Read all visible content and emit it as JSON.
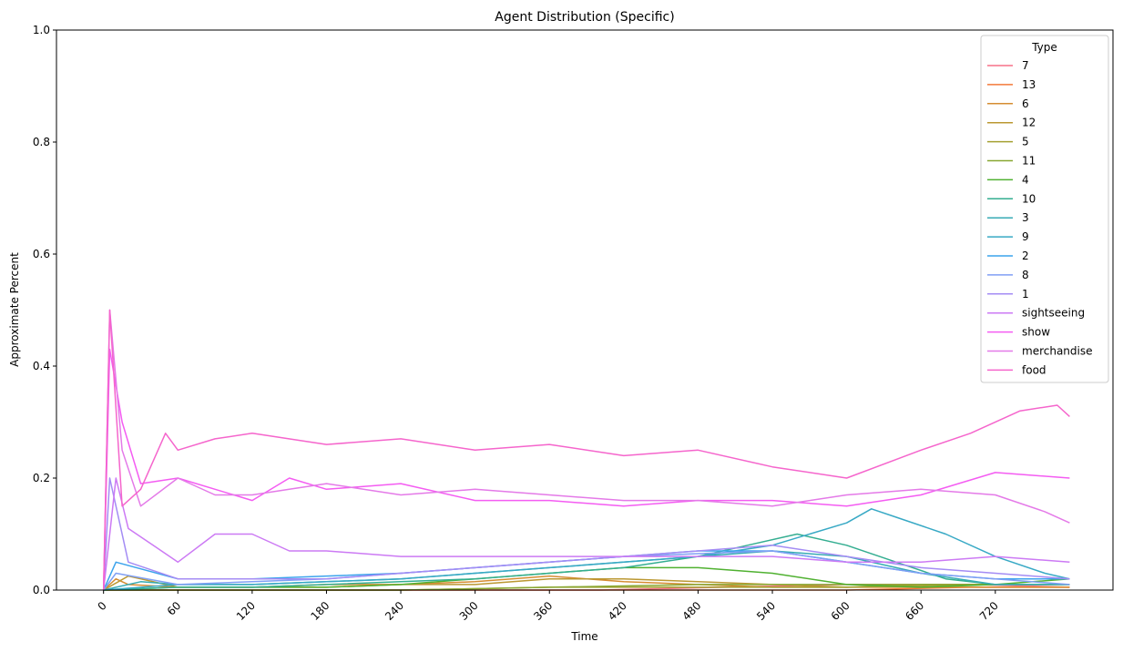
{
  "chart_data": {
    "type": "line",
    "title": "Agent Distribution (Specific)",
    "xlabel": "Time",
    "ylabel": "Approximate Percent",
    "xlim": [
      -38,
      815
    ],
    "ylim": [
      0,
      1
    ],
    "x_ticks": [
      0,
      60,
      120,
      180,
      240,
      300,
      360,
      420,
      480,
      540,
      600,
      660,
      720
    ],
    "y_ticks": [
      0.0,
      0.2,
      0.4,
      0.6,
      0.8,
      1.0
    ],
    "x_tick_labels": [
      "0",
      "60",
      "120",
      "180",
      "240",
      "300",
      "360",
      "420",
      "480",
      "540",
      "600",
      "660",
      "720"
    ],
    "y_tick_labels": [
      "0.0",
      "0.2",
      "0.4",
      "0.6",
      "0.8",
      "1.0"
    ],
    "x_tick_rotation": 45,
    "grid": false,
    "legend": {
      "title": "Type",
      "position": "top-right"
    },
    "series": [
      {
        "name": "7",
        "color": "#f77189",
        "x": [
          0,
          100,
          200,
          300,
          400,
          500,
          600,
          700,
          780
        ],
        "y": [
          0,
          0,
          0,
          0,
          0,
          0.005,
          0.01,
          0.01,
          0.005
        ]
      },
      {
        "name": "13",
        "color": "#f3793a",
        "x": [
          0,
          100,
          200,
          300,
          400,
          500,
          600,
          700,
          780
        ],
        "y": [
          0,
          0,
          0,
          0,
          0,
          0,
          0,
          0.005,
          0.005
        ]
      },
      {
        "name": "6",
        "color": "#d58c32",
        "x": [
          0,
          10,
          20,
          60,
          120,
          180,
          240,
          300,
          360,
          420,
          480,
          540,
          600,
          660,
          720,
          780
        ],
        "y": [
          0,
          0.02,
          0.01,
          0.005,
          0.005,
          0.01,
          0.01,
          0.015,
          0.025,
          0.015,
          0.01,
          0.005,
          0.005,
          0.005,
          0.005,
          0.005
        ]
      },
      {
        "name": "12",
        "color": "#bb9832",
        "x": [
          0,
          20,
          60,
          120,
          180,
          240,
          300,
          360,
          420,
          480,
          540,
          600,
          660,
          720,
          780
        ],
        "y": [
          0,
          0.025,
          0.005,
          0.005,
          0.005,
          0.01,
          0.01,
          0.02,
          0.02,
          0.015,
          0.01,
          0.005,
          0.01,
          0.01,
          0.01
        ]
      },
      {
        "name": "5",
        "color": "#a4a031",
        "x": [
          0,
          120,
          240,
          360,
          480,
          600,
          720,
          780
        ],
        "y": [
          0,
          0,
          0,
          0.005,
          0.005,
          0.005,
          0.01,
          0.01
        ]
      },
      {
        "name": "11",
        "color": "#88a731",
        "x": [
          0,
          120,
          240,
          360,
          480,
          600,
          720,
          780
        ],
        "y": [
          0,
          0,
          0,
          0.005,
          0.01,
          0.01,
          0.01,
          0.01
        ]
      },
      {
        "name": "4",
        "color": "#50b131",
        "x": [
          0,
          60,
          120,
          180,
          240,
          300,
          360,
          420,
          480,
          540,
          600,
          660,
          720,
          780
        ],
        "y": [
          0,
          0.005,
          0.005,
          0.005,
          0.01,
          0.02,
          0.03,
          0.04,
          0.04,
          0.03,
          0.01,
          0.005,
          0.01,
          0.02
        ]
      },
      {
        "name": "10",
        "color": "#34ae91",
        "x": [
          0,
          60,
          120,
          180,
          240,
          300,
          360,
          420,
          480,
          520,
          560,
          600,
          640,
          680,
          720,
          780
        ],
        "y": [
          0,
          0.005,
          0.005,
          0.01,
          0.015,
          0.02,
          0.03,
          0.04,
          0.06,
          0.08,
          0.1,
          0.08,
          0.05,
          0.02,
          0.01,
          0.01
        ]
      },
      {
        "name": "3",
        "color": "#37abb4",
        "x": [
          0,
          30,
          60,
          120,
          180,
          240,
          300,
          360,
          420,
          480,
          540,
          600,
          660,
          720,
          780
        ],
        "y": [
          0,
          0.015,
          0.01,
          0.01,
          0.015,
          0.02,
          0.03,
          0.04,
          0.05,
          0.06,
          0.07,
          0.06,
          0.03,
          0.01,
          0.01
        ]
      },
      {
        "name": "9",
        "color": "#38a9c5",
        "x": [
          0,
          60,
          120,
          180,
          240,
          300,
          360,
          420,
          480,
          540,
          600,
          620,
          640,
          680,
          720,
          760,
          780
        ],
        "y": [
          0,
          0.01,
          0.01,
          0.015,
          0.02,
          0.03,
          0.04,
          0.05,
          0.06,
          0.08,
          0.12,
          0.145,
          0.13,
          0.1,
          0.06,
          0.03,
          0.02
        ]
      },
      {
        "name": "2",
        "color": "#3ba3ec",
        "x": [
          0,
          10,
          60,
          120,
          180,
          240,
          300,
          360,
          420,
          480,
          540,
          600,
          660,
          720,
          780
        ],
        "y": [
          0,
          0.05,
          0.02,
          0.02,
          0.025,
          0.03,
          0.04,
          0.05,
          0.06,
          0.07,
          0.07,
          0.05,
          0.03,
          0.02,
          0.02
        ]
      },
      {
        "name": "8",
        "color": "#809ff4",
        "x": [
          0,
          10,
          60,
          120,
          180,
          240,
          300,
          360,
          420,
          480,
          540,
          600,
          660,
          720,
          780
        ],
        "y": [
          0,
          0.03,
          0.01,
          0.015,
          0.02,
          0.03,
          0.04,
          0.05,
          0.06,
          0.065,
          0.07,
          0.05,
          0.03,
          0.02,
          0.01
        ]
      },
      {
        "name": "1",
        "color": "#a48cf4",
        "x": [
          0,
          5,
          20,
          60,
          120,
          180,
          240,
          300,
          360,
          420,
          480,
          540,
          600,
          660,
          720,
          780
        ],
        "y": [
          0,
          0.2,
          0.05,
          0.02,
          0.02,
          0.02,
          0.03,
          0.04,
          0.05,
          0.06,
          0.07,
          0.08,
          0.06,
          0.04,
          0.03,
          0.02
        ]
      },
      {
        "name": "sightseeing",
        "color": "#cc7af4",
        "x": [
          0,
          10,
          20,
          40,
          60,
          90,
          120,
          150,
          180,
          240,
          300,
          360,
          420,
          480,
          540,
          600,
          660,
          720,
          780
        ],
        "y": [
          0,
          0.2,
          0.11,
          0.08,
          0.05,
          0.1,
          0.1,
          0.07,
          0.07,
          0.06,
          0.06,
          0.06,
          0.06,
          0.06,
          0.06,
          0.05,
          0.05,
          0.06,
          0.05
        ]
      },
      {
        "name": "show",
        "color": "#f45cf2",
        "x": [
          0,
          5,
          15,
          30,
          60,
          90,
          120,
          150,
          180,
          240,
          300,
          360,
          420,
          480,
          540,
          600,
          660,
          720,
          780
        ],
        "y": [
          0,
          0.43,
          0.3,
          0.19,
          0.2,
          0.18,
          0.16,
          0.2,
          0.18,
          0.19,
          0.16,
          0.16,
          0.15,
          0.16,
          0.16,
          0.15,
          0.17,
          0.21,
          0.2
        ]
      },
      {
        "name": "merchandise",
        "color": "#e47ae8",
        "x": [
          0,
          5,
          15,
          30,
          60,
          90,
          120,
          150,
          180,
          240,
          300,
          360,
          420,
          480,
          540,
          600,
          660,
          720,
          760,
          780
        ],
        "y": [
          0,
          0.5,
          0.25,
          0.15,
          0.2,
          0.17,
          0.17,
          0.18,
          0.19,
          0.17,
          0.18,
          0.17,
          0.16,
          0.16,
          0.15,
          0.17,
          0.18,
          0.17,
          0.14,
          0.12
        ]
      },
      {
        "name": "food",
        "color": "#f565cc",
        "x": [
          0,
          5,
          15,
          30,
          50,
          60,
          90,
          120,
          180,
          240,
          300,
          360,
          420,
          480,
          540,
          600,
          660,
          700,
          740,
          770,
          780
        ],
        "y": [
          0,
          0.5,
          0.15,
          0.18,
          0.28,
          0.25,
          0.27,
          0.28,
          0.26,
          0.27,
          0.25,
          0.26,
          0.24,
          0.25,
          0.22,
          0.2,
          0.25,
          0.28,
          0.32,
          0.33,
          0.31
        ]
      }
    ]
  }
}
